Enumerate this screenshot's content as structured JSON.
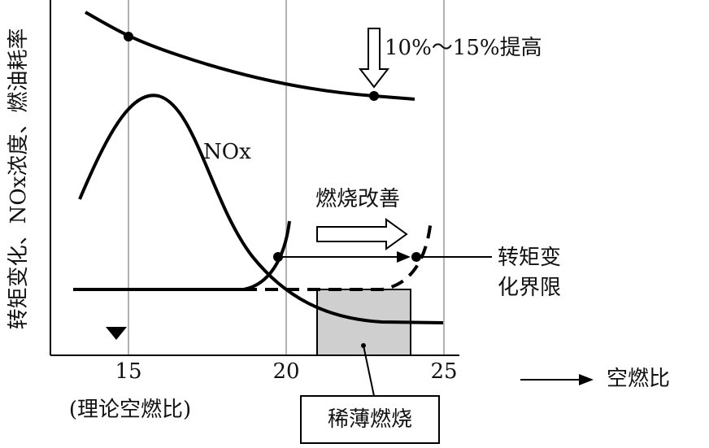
{
  "y_axis_label": "转矩变化、NOx浓度、燃油耗率",
  "x_ticks": [
    "15",
    "20",
    "25"
  ],
  "x_axis_label": "空燃比",
  "x_note": "(理论空燃比)",
  "fuel_label": "10%～15%提高",
  "nox_label": "NOx",
  "improve_label": "燃烧改善",
  "torque_limit_label": [
    "转矩变",
    "化界限"
  ],
  "lean_label": "稀薄燃烧"
}
